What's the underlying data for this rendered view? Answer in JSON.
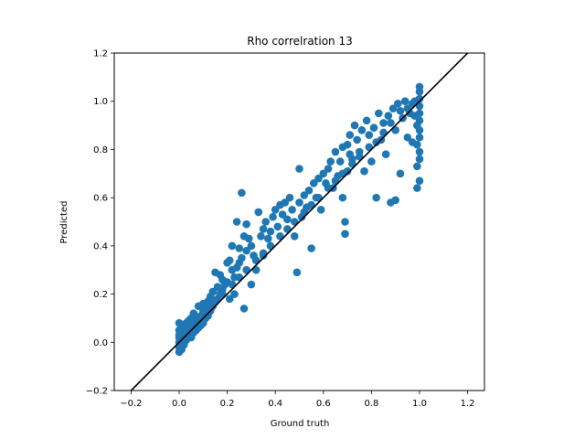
{
  "chart_data": {
    "type": "scatter",
    "title": "Rho correlration  13",
    "xlabel": "Ground truth",
    "ylabel": "Predicted",
    "xlim": [
      -0.27,
      1.27
    ],
    "ylim": [
      -0.2,
      1.2
    ],
    "xticks": [
      -0.2,
      0.0,
      0.2,
      0.4,
      0.6,
      0.8,
      1.0,
      1.2
    ],
    "xtick_labels": [
      "−0.2",
      "0.0",
      "0.2",
      "0.4",
      "0.6",
      "0.8",
      "1.0",
      "1.2"
    ],
    "yticks": [
      -0.2,
      0.0,
      0.2,
      0.4,
      0.6,
      0.8,
      1.0,
      1.2
    ],
    "ytick_labels": [
      "−0.2",
      "0.0",
      "0.2",
      "0.4",
      "0.6",
      "0.8",
      "1.0",
      "1.2"
    ],
    "grid": false,
    "point_color": "#1f77b4",
    "line_color": "#000000",
    "reference_line": {
      "x": [
        -0.27,
        1.27
      ],
      "y": [
        -0.27,
        1.27
      ]
    },
    "points": [
      [
        0.0,
        -0.04
      ],
      [
        0.0,
        0.0
      ],
      [
        0.0,
        0.02
      ],
      [
        0.0,
        0.05
      ],
      [
        0.0,
        0.08
      ],
      [
        0.0,
        -0.02
      ],
      [
        0.0,
        0.03
      ],
      [
        0.01,
        0.01
      ],
      [
        0.01,
        0.06
      ],
      [
        0.01,
        -0.03
      ],
      [
        0.02,
        0.02
      ],
      [
        0.02,
        0.07
      ],
      [
        0.02,
        0.04
      ],
      [
        0.02,
        -0.01
      ],
      [
        0.03,
        0.05
      ],
      [
        0.03,
        0.08
      ],
      [
        0.03,
        0.01
      ],
      [
        0.04,
        0.06
      ],
      [
        0.04,
        0.03
      ],
      [
        0.04,
        0.09
      ],
      [
        0.05,
        0.02
      ],
      [
        0.05,
        0.07
      ],
      [
        0.05,
        0.1
      ],
      [
        0.06,
        0.04
      ],
      [
        0.06,
        0.08
      ],
      [
        0.06,
        0.12
      ],
      [
        0.07,
        0.05
      ],
      [
        0.07,
        0.1
      ],
      [
        0.08,
        0.06
      ],
      [
        0.08,
        0.15
      ],
      [
        0.08,
        0.09
      ],
      [
        0.09,
        0.11
      ],
      [
        0.09,
        0.07
      ],
      [
        0.1,
        0.08
      ],
      [
        0.1,
        0.13
      ],
      [
        0.1,
        0.16
      ],
      [
        0.11,
        0.1
      ],
      [
        0.11,
        0.14
      ],
      [
        0.12,
        0.11
      ],
      [
        0.12,
        0.17
      ],
      [
        0.13,
        0.13
      ],
      [
        0.13,
        0.19
      ],
      [
        0.14,
        0.15
      ],
      [
        0.14,
        0.21
      ],
      [
        0.15,
        0.17
      ],
      [
        0.15,
        0.29
      ],
      [
        0.16,
        0.18
      ],
      [
        0.16,
        0.23
      ],
      [
        0.17,
        0.2
      ],
      [
        0.17,
        0.28
      ],
      [
        0.18,
        0.22
      ],
      [
        0.18,
        0.26
      ],
      [
        0.19,
        0.24
      ],
      [
        0.2,
        0.33
      ],
      [
        0.2,
        0.25
      ],
      [
        0.21,
        0.34
      ],
      [
        0.21,
        0.18
      ],
      [
        0.22,
        0.3
      ],
      [
        0.22,
        0.4
      ],
      [
        0.23,
        0.27
      ],
      [
        0.23,
        0.2
      ],
      [
        0.24,
        0.31
      ],
      [
        0.24,
        0.5
      ],
      [
        0.25,
        0.39
      ],
      [
        0.25,
        0.33
      ],
      [
        0.26,
        0.62
      ],
      [
        0.26,
        0.35
      ],
      [
        0.27,
        0.44
      ],
      [
        0.27,
        0.14
      ],
      [
        0.28,
        0.38
      ],
      [
        0.28,
        0.49
      ],
      [
        0.29,
        0.43
      ],
      [
        0.3,
        0.24
      ],
      [
        0.3,
        0.4
      ],
      [
        0.31,
        0.36
      ],
      [
        0.32,
        0.3
      ],
      [
        0.33,
        0.54
      ],
      [
        0.34,
        0.44
      ],
      [
        0.35,
        0.47
      ],
      [
        0.35,
        0.36
      ],
      [
        0.36,
        0.5
      ],
      [
        0.37,
        0.43
      ],
      [
        0.38,
        0.46
      ],
      [
        0.39,
        0.52
      ],
      [
        0.4,
        0.55
      ],
      [
        0.41,
        0.48
      ],
      [
        0.42,
        0.57
      ],
      [
        0.43,
        0.53
      ],
      [
        0.44,
        0.58
      ],
      [
        0.45,
        0.51
      ],
      [
        0.46,
        0.6
      ],
      [
        0.47,
        0.55
      ],
      [
        0.48,
        0.44
      ],
      [
        0.49,
        0.29
      ],
      [
        0.5,
        0.72
      ],
      [
        0.5,
        0.58
      ],
      [
        0.51,
        0.52
      ],
      [
        0.52,
        0.61
      ],
      [
        0.53,
        0.56
      ],
      [
        0.54,
        0.63
      ],
      [
        0.55,
        0.39
      ],
      [
        0.56,
        0.66
      ],
      [
        0.57,
        0.6
      ],
      [
        0.58,
        0.68
      ],
      [
        0.59,
        0.55
      ],
      [
        0.6,
        0.7
      ],
      [
        0.61,
        0.66
      ],
      [
        0.62,
        0.72
      ],
      [
        0.63,
        0.75
      ],
      [
        0.64,
        0.64
      ],
      [
        0.65,
        0.79
      ],
      [
        0.66,
        0.69
      ],
      [
        0.67,
        0.75
      ],
      [
        0.68,
        0.6
      ],
      [
        0.68,
        0.81
      ],
      [
        0.69,
        0.5
      ],
      [
        0.69,
        0.45
      ],
      [
        0.7,
        0.82
      ],
      [
        0.7,
        0.71
      ],
      [
        0.71,
        0.86
      ],
      [
        0.71,
        0.78
      ],
      [
        0.72,
        0.76
      ],
      [
        0.73,
        0.9
      ],
      [
        0.74,
        0.84
      ],
      [
        0.75,
        0.79
      ],
      [
        0.76,
        0.88
      ],
      [
        0.77,
        0.71
      ],
      [
        0.78,
        0.92
      ],
      [
        0.79,
        0.86
      ],
      [
        0.8,
        0.75
      ],
      [
        0.81,
        0.89
      ],
      [
        0.82,
        0.6
      ],
      [
        0.83,
        0.95
      ],
      [
        0.84,
        0.84
      ],
      [
        0.85,
        0.91
      ],
      [
        0.86,
        0.78
      ],
      [
        0.87,
        0.94
      ],
      [
        0.88,
        0.58
      ],
      [
        0.89,
        0.97
      ],
      [
        0.9,
        0.59
      ],
      [
        0.9,
        0.88
      ],
      [
        0.91,
        0.99
      ],
      [
        0.92,
        0.7
      ],
      [
        0.93,
        0.93
      ],
      [
        0.94,
        1.0
      ],
      [
        0.95,
        0.85
      ],
      [
        0.96,
        0.95
      ],
      [
        0.97,
        0.83
      ],
      [
        0.98,
        1.0
      ],
      [
        0.99,
        0.64
      ],
      [
        0.99,
        0.73
      ],
      [
        0.99,
        0.82
      ],
      [
        1.0,
        0.67
      ],
      [
        1.0,
        0.76
      ],
      [
        1.0,
        0.79
      ],
      [
        1.0,
        0.85
      ],
      [
        1.0,
        0.88
      ],
      [
        1.0,
        0.92
      ],
      [
        1.0,
        0.95
      ],
      [
        1.0,
        0.98
      ],
      [
        1.0,
        1.01
      ],
      [
        1.0,
        1.04
      ],
      [
        1.0,
        1.06
      ],
      [
        0.99,
        0.9
      ],
      [
        0.98,
        0.94
      ],
      [
        0.97,
        0.99
      ],
      [
        0.95,
        0.97
      ],
      [
        0.92,
        0.96
      ],
      [
        0.88,
        0.91
      ],
      [
        0.85,
        0.87
      ],
      [
        0.82,
        0.83
      ],
      [
        0.79,
        0.81
      ],
      [
        0.75,
        0.77
      ],
      [
        0.72,
        0.74
      ],
      [
        0.68,
        0.7
      ],
      [
        0.65,
        0.67
      ],
      [
        0.62,
        0.64
      ],
      [
        0.58,
        0.6
      ],
      [
        0.55,
        0.57
      ],
      [
        0.52,
        0.54
      ],
      [
        0.48,
        0.5
      ],
      [
        0.45,
        0.47
      ],
      [
        0.42,
        0.44
      ],
      [
        0.38,
        0.4
      ],
      [
        0.35,
        0.37
      ],
      [
        0.32,
        0.34
      ],
      [
        0.28,
        0.3
      ],
      [
        0.25,
        0.27
      ],
      [
        0.22,
        0.24
      ],
      [
        0.18,
        0.2
      ],
      [
        0.15,
        0.17
      ],
      [
        0.12,
        0.14
      ]
    ]
  }
}
